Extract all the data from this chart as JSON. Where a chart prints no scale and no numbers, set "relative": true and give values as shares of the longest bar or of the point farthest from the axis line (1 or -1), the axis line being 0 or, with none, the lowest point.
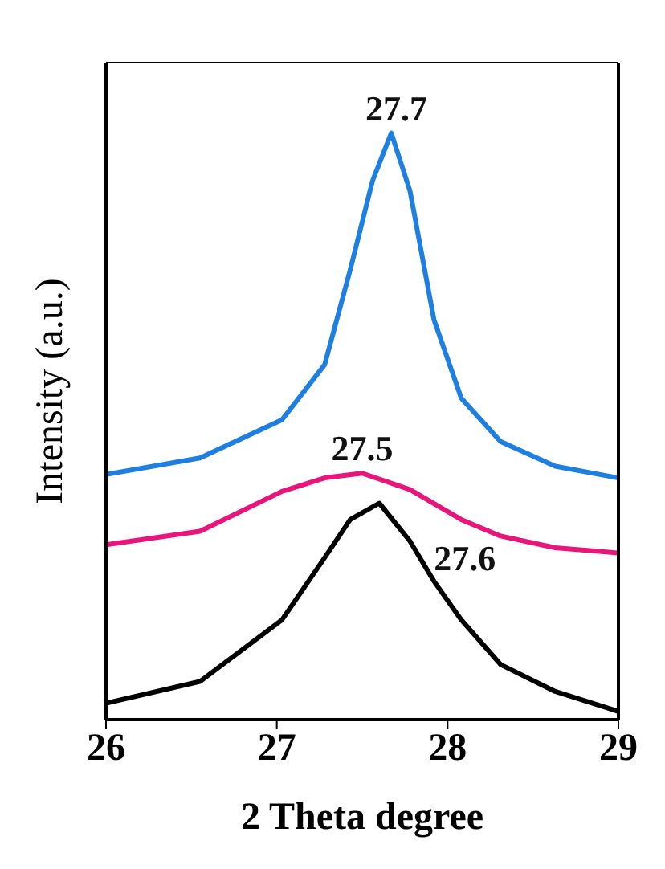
{
  "chart_data": {
    "type": "line",
    "relative": true,
    "xlabel": "2 Theta degree",
    "ylabel": "Intensity (a.u.)",
    "xlim": [
      26,
      29
    ],
    "xticks": [
      26,
      27,
      28,
      29
    ],
    "marker": "none",
    "line_style": "solid",
    "series": [
      {
        "color": "#1f7fe0",
        "x": [
          26,
          26.55,
          27.03,
          27.28,
          27.43,
          27.56,
          27.67,
          27.78,
          27.92,
          28.08,
          28.31,
          28.63,
          29
        ],
        "values": [
          0.418,
          0.446,
          0.511,
          0.605,
          0.767,
          0.918,
          1,
          0.901,
          0.682,
          0.548,
          0.474,
          0.432,
          0.412
        ]
      },
      {
        "color": "#e8157a",
        "x": [
          26,
          26.55,
          27.03,
          27.28,
          27.5,
          27.78,
          28.08,
          28.31,
          28.63,
          29
        ],
        "values": [
          0.298,
          0.321,
          0.389,
          0.412,
          0.42,
          0.392,
          0.341,
          0.313,
          0.293,
          0.284
        ]
      },
      {
        "color": "#000000",
        "x": [
          26,
          26.55,
          27.03,
          27.28,
          27.43,
          27.6,
          27.78,
          27.92,
          28.08,
          28.31,
          28.63,
          29
        ],
        "values": [
          0.028,
          0.065,
          0.17,
          0.276,
          0.341,
          0.369,
          0.304,
          0.236,
          0.17,
          0.094,
          0.048,
          0.014
        ]
      }
    ],
    "annotations": [
      {
        "text": "27.7",
        "x": 27.7,
        "y": 1
      },
      {
        "text": "27.5",
        "x": 27.5,
        "y": 0.42
      },
      {
        "text": "27.6",
        "x": 27.6,
        "y": 0.369
      }
    ]
  }
}
